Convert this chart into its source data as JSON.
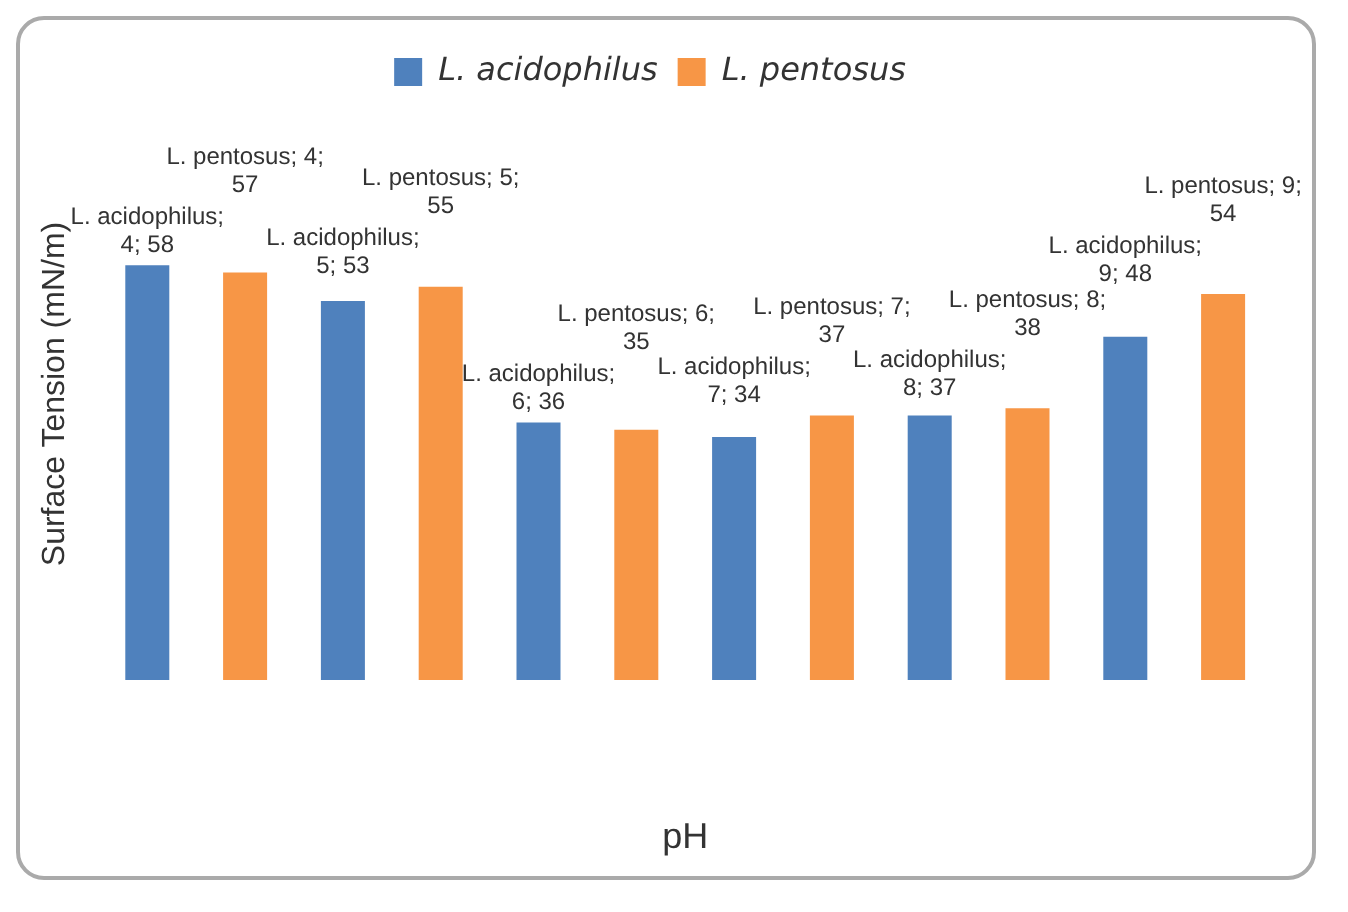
{
  "chart_data": {
    "type": "bar",
    "xlabel": "pH",
    "ylabel": "Surface Tension (mN/m)",
    "categories": [
      null,
      null,
      null,
      null,
      null,
      null
    ],
    "grid": false,
    "legend": "top",
    "data_labels": false,
    "series": [
      {
        "name": "L. acidophilus",
        "color": "#4f81bd",
        "values": [
          58,
          53,
          36,
          34,
          37,
          48
        ],
        "value_labels": [
          "L. acidophilus; 4; 58",
          "L. acidophilus; 5; 53",
          "L. acidophilus; 6; 36",
          "L. acidophilus; 7; 34",
          "L. acidophilus; 8; 37",
          "L. acidophilus; 9; 48"
        ]
      },
      {
        "name": "L. pentosus",
        "color": "#f79646",
        "values": [
          57,
          55,
          35,
          37,
          38,
          54
        ],
        "value_labels": [
          "L. pentosus; 4; 57",
          "L. pentosus; 5; 55",
          "L. pentosus; 6; 35",
          "L. pentosus; 7; 37",
          "L. pentosus; 8; 38",
          "L. pentosus; 9; 54"
        ]
      }
    ]
  }
}
